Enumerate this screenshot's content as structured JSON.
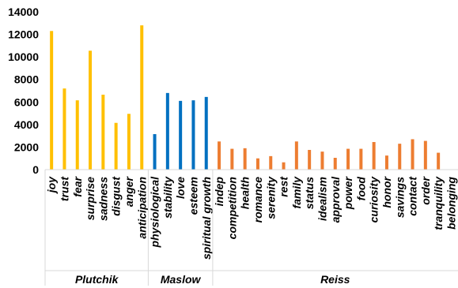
{
  "chart_data": {
    "type": "bar",
    "title": "",
    "xlabel": "",
    "ylabel": "",
    "ylim": [
      0,
      14000
    ],
    "yticks": [
      0,
      2000,
      4000,
      6000,
      8000,
      10000,
      12000,
      14000
    ],
    "grid": false,
    "legend": "none",
    "groups": [
      {
        "name": "Plutchik",
        "color": "#FFC000",
        "categories": [
          "joy",
          "trust",
          "fear",
          "surprise",
          "sadness",
          "disgust",
          "anger",
          "anticipation"
        ],
        "values": [
          12300,
          7200,
          6150,
          10550,
          6650,
          4150,
          4950,
          12800
        ]
      },
      {
        "name": "Maslow",
        "color": "#0070C0",
        "categories": [
          "physiological",
          "stability",
          "love",
          "esteem",
          "spiritual growth"
        ],
        "values": [
          3150,
          6800,
          6100,
          6150,
          6450
        ]
      },
      {
        "name": "Reiss",
        "color": "#ED7D31",
        "categories": [
          "indep",
          "competition",
          "health",
          "romance",
          "serenity",
          "rest",
          "family",
          "status",
          "idealism",
          "approval",
          "power",
          "food",
          "curiosity",
          "honor",
          "savings",
          "contact",
          "order",
          "tranquility",
          "belonging"
        ],
        "values": [
          2500,
          1850,
          1900,
          1000,
          1200,
          650,
          2500,
          1750,
          1600,
          1050,
          1850,
          1850,
          2450,
          1250,
          2300,
          2700,
          2550,
          1500,
          0
        ]
      }
    ]
  }
}
